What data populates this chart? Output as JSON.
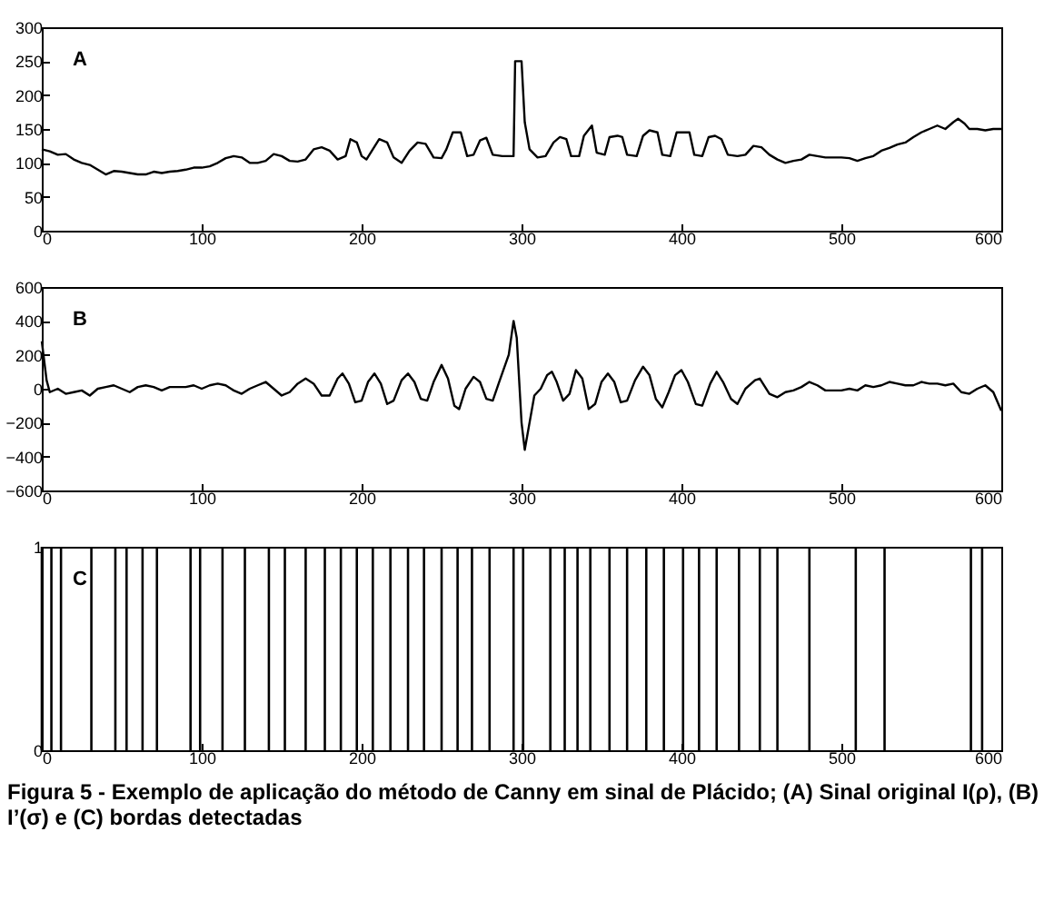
{
  "chart_data": [
    {
      "type": "line",
      "title": "A",
      "xlim": [
        0,
        600
      ],
      "xticks": [
        0,
        100,
        200,
        300,
        400,
        500,
        600
      ],
      "ylim": [
        0,
        300
      ],
      "yticks": [
        0,
        50,
        100,
        150,
        200,
        250,
        300
      ],
      "x": [
        0,
        5,
        10,
        15,
        20,
        25,
        30,
        35,
        40,
        45,
        50,
        55,
        60,
        65,
        70,
        75,
        80,
        85,
        90,
        95,
        100,
        105,
        110,
        115,
        120,
        125,
        130,
        135,
        140,
        145,
        150,
        155,
        160,
        165,
        170,
        175,
        180,
        185,
        190,
        193,
        197,
        200,
        203,
        207,
        211,
        216,
        220,
        225,
        230,
        235,
        240,
        245,
        250,
        253,
        257,
        262,
        266,
        270,
        274,
        278,
        282,
        288,
        295,
        296,
        300,
        302,
        305,
        310,
        315,
        320,
        324,
        328,
        331,
        336,
        339,
        344,
        347,
        352,
        355,
        360,
        363,
        366,
        372,
        376,
        380,
        385,
        388,
        393,
        397,
        402,
        405,
        408,
        413,
        417,
        421,
        425,
        429,
        435,
        440,
        445,
        450,
        455,
        460,
        465,
        470,
        475,
        480,
        485,
        490,
        495,
        500,
        505,
        510,
        515,
        520,
        525,
        530,
        535,
        540,
        545,
        550,
        555,
        560,
        565,
        570,
        573,
        577,
        580,
        585,
        590,
        595,
        600
      ],
      "series": [
        {
          "color": "#000000",
          "values": [
            120,
            117,
            112,
            113,
            105,
            100,
            97,
            90,
            83,
            88,
            87,
            85,
            83,
            83,
            87,
            85,
            87,
            88,
            90,
            93,
            93,
            95,
            100,
            107,
            110,
            108,
            100,
            100,
            103,
            113,
            110,
            103,
            102,
            105,
            120,
            123,
            118,
            105,
            110,
            135,
            130,
            110,
            105,
            120,
            135,
            130,
            108,
            100,
            118,
            130,
            128,
            108,
            107,
            120,
            145,
            145,
            110,
            112,
            133,
            137,
            112,
            110,
            110,
            250,
            250,
            160,
            120,
            108,
            110,
            130,
            138,
            135,
            110,
            110,
            140,
            155,
            115,
            112,
            138,
            140,
            138,
            112,
            110,
            140,
            148,
            145,
            112,
            110,
            145,
            145,
            145,
            112,
            110,
            138,
            140,
            135,
            112,
            110,
            112,
            125,
            123,
            112,
            105,
            100,
            103,
            105,
            112,
            110,
            108,
            108,
            108,
            107,
            103,
            107,
            110,
            118,
            122,
            127,
            130,
            138,
            145,
            150,
            155,
            150,
            160,
            165,
            158,
            150,
            150,
            148,
            150,
            150
          ]
        }
      ]
    },
    {
      "type": "line",
      "title": "B",
      "xlim": [
        0,
        600
      ],
      "xticks": [
        0,
        100,
        200,
        300,
        400,
        500,
        600
      ],
      "ylim": [
        -600,
        600
      ],
      "yticks": [
        -600,
        -400,
        -200,
        0,
        200,
        400,
        600
      ],
      "x": [
        0,
        3,
        5,
        10,
        15,
        20,
        25,
        30,
        35,
        40,
        45,
        50,
        55,
        60,
        65,
        70,
        75,
        80,
        85,
        90,
        95,
        100,
        105,
        110,
        115,
        120,
        125,
        130,
        135,
        140,
        145,
        150,
        155,
        160,
        165,
        170,
        175,
        180,
        185,
        188,
        192,
        196,
        200,
        204,
        208,
        212,
        216,
        220,
        225,
        229,
        233,
        237,
        241,
        245,
        250,
        254,
        258,
        261,
        265,
        270,
        274,
        278,
        282,
        286,
        292,
        295,
        297,
        300,
        302,
        305,
        308,
        312,
        316,
        319,
        322,
        326,
        330,
        334,
        338,
        342,
        346,
        350,
        354,
        358,
        362,
        366,
        371,
        376,
        380,
        384,
        388,
        392,
        396,
        400,
        404,
        409,
        413,
        418,
        422,
        426,
        431,
        435,
        440,
        446,
        449,
        455,
        460,
        465,
        470,
        475,
        480,
        485,
        490,
        495,
        500,
        505,
        510,
        515,
        520,
        525,
        530,
        535,
        540,
        545,
        550,
        555,
        560,
        565,
        570,
        575,
        580,
        585,
        590,
        595,
        600
      ],
      "series": [
        {
          "color": "#000000",
          "values": [
            280,
            50,
            -20,
            0,
            -30,
            -20,
            -10,
            -40,
            0,
            10,
            20,
            0,
            -20,
            10,
            20,
            10,
            -10,
            10,
            10,
            10,
            20,
            0,
            20,
            30,
            20,
            -10,
            -30,
            0,
            20,
            40,
            0,
            -40,
            -20,
            30,
            60,
            30,
            -40,
            -40,
            60,
            90,
            30,
            -80,
            -70,
            40,
            90,
            30,
            -90,
            -70,
            50,
            90,
            40,
            -60,
            -70,
            40,
            140,
            60,
            -100,
            -120,
            0,
            70,
            40,
            -60,
            -70,
            40,
            200,
            400,
            300,
            -200,
            -360,
            -200,
            -40,
            0,
            80,
            100,
            40,
            -70,
            -30,
            110,
            60,
            -120,
            -90,
            40,
            90,
            40,
            -80,
            -70,
            50,
            130,
            80,
            -60,
            -110,
            -20,
            80,
            110,
            40,
            -90,
            -100,
            30,
            100,
            40,
            -60,
            -90,
            0,
            50,
            60,
            -30,
            -50,
            -20,
            -10,
            10,
            40,
            20,
            -10,
            -10,
            -10,
            0,
            -10,
            20,
            10,
            20,
            40,
            30,
            20,
            20,
            40,
            30,
            30,
            20,
            30,
            -20,
            -30,
            0,
            20,
            -20,
            -130
          ]
        }
      ]
    },
    {
      "type": "bar",
      "title": "C",
      "xlim": [
        0,
        600
      ],
      "xticks": [
        0,
        100,
        200,
        300,
        400,
        500,
        600
      ],
      "ylim": [
        0,
        1
      ],
      "yticks": [
        0,
        1
      ],
      "x": [
        0,
        6,
        12,
        31,
        46,
        53,
        63,
        72,
        93,
        99,
        113,
        127,
        142,
        152,
        165,
        177,
        187,
        197,
        207,
        218,
        229,
        239,
        250,
        260,
        269,
        280,
        295,
        301,
        318,
        327,
        335,
        343,
        355,
        366,
        378,
        389,
        401,
        411,
        422,
        436,
        449,
        460,
        480,
        509,
        527,
        581,
        588
      ],
      "series": [
        {
          "color": "#000000",
          "values": [
            1,
            1,
            1,
            1,
            1,
            1,
            1,
            1,
            1,
            1,
            1,
            1,
            1,
            1,
            1,
            1,
            1,
            1,
            1,
            1,
            1,
            1,
            1,
            1,
            1,
            1,
            1,
            1,
            1,
            1,
            1,
            1,
            1,
            1,
            1,
            1,
            1,
            1,
            1,
            1,
            1,
            1,
            1,
            1,
            1,
            1,
            1
          ]
        }
      ],
      "annotations": [
        "Figura 5 - Exemplo de aplicação do método de Canny em sinal de Plácido; (A) Sinal original I(ρ), (B) I’(σ) e (C) bordas detectadas"
      ]
    }
  ]
}
